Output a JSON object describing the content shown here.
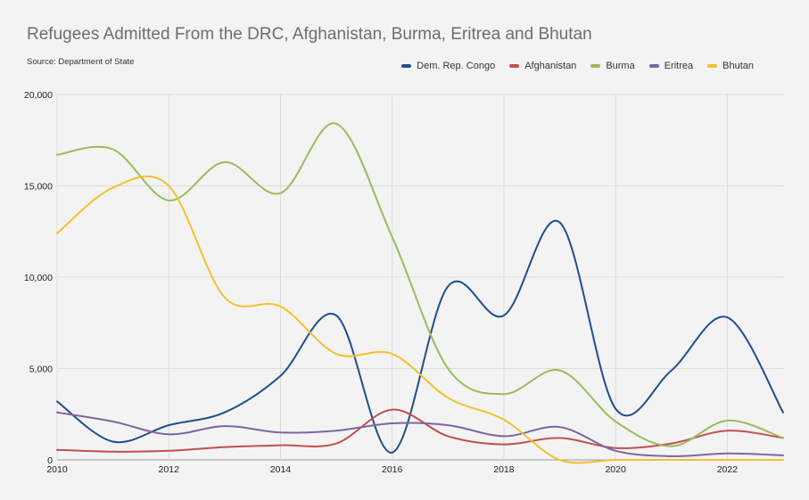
{
  "chart_data": {
    "type": "line",
    "title": "Refugees Admitted From the DRC, Afghanistan, Burma, Eritrea and Bhutan",
    "source": "Source: Department of State",
    "xlabel": "",
    "ylabel": "",
    "xlim": [
      2010,
      2023
    ],
    "ylim": [
      0,
      20000
    ],
    "x_ticks": [
      "2010",
      "2012",
      "2014",
      "2016",
      "2018",
      "2020",
      "2022"
    ],
    "y_ticks": [
      "0",
      "5,000",
      "10,000",
      "15,000",
      "20,000"
    ],
    "grid": true,
    "legend_position": "top-right",
    "x": [
      2010,
      2011,
      2012,
      2013,
      2014,
      2015,
      2016,
      2017,
      2018,
      2019,
      2020,
      2021,
      2022,
      2023
    ],
    "series": [
      {
        "name": "Dem. Rep. Congo",
        "color": "#1f4e8c",
        "values": [
          3200,
          1000,
          1900,
          2600,
          4600,
          7900,
          400,
          9500,
          7900,
          13000,
          2800,
          4900,
          7800,
          2600
        ]
      },
      {
        "name": "Afghanistan",
        "color": "#c0504d",
        "values": [
          550,
          450,
          500,
          700,
          800,
          900,
          2750,
          1300,
          850,
          1200,
          650,
          900,
          1600,
          1200
        ]
      },
      {
        "name": "Burma",
        "color": "#9bbb59",
        "values": [
          16700,
          17000,
          14200,
          16300,
          14600,
          18400,
          12200,
          5000,
          3600,
          4900,
          2100,
          750,
          2150,
          1200
        ]
      },
      {
        "name": "Eritrea",
        "color": "#8064a2",
        "values": [
          2600,
          2100,
          1400,
          1850,
          1500,
          1600,
          2000,
          1900,
          1300,
          1800,
          500,
          200,
          350,
          250
        ]
      },
      {
        "name": "Bhutan",
        "color": "#f2c12e",
        "values": [
          12400,
          14900,
          15000,
          8900,
          8400,
          5800,
          5800,
          3400,
          2200,
          0,
          0,
          0,
          0,
          0
        ]
      }
    ]
  }
}
